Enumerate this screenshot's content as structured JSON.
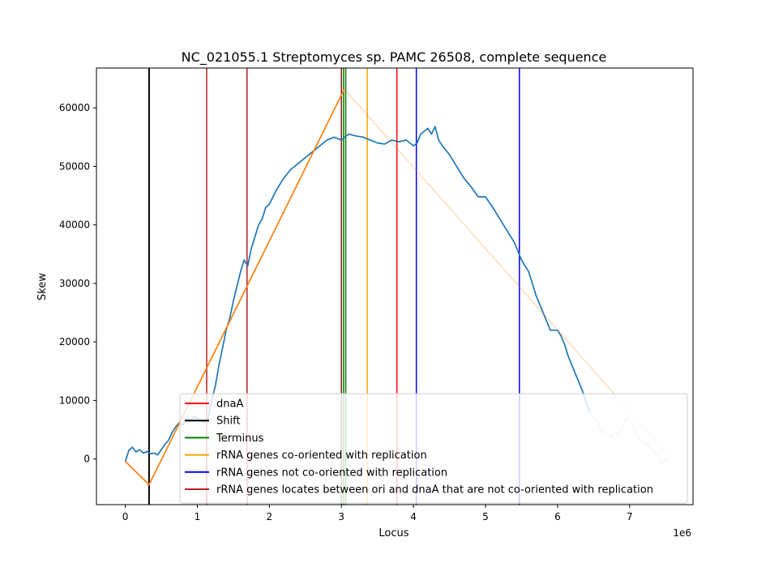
{
  "chart_data": {
    "type": "line",
    "title": "NC_021055.1 Streptomyces sp. PAMC 26508, complete sequence",
    "xlabel": "Locus",
    "ylabel": "Skew",
    "x_offset_label": "1e6",
    "xlim": [
      -400000,
      7880000
    ],
    "ylim": [
      -7800,
      66800
    ],
    "x_ticks": [
      0,
      1000000,
      2000000,
      3000000,
      4000000,
      5000000,
      6000000,
      7000000
    ],
    "x_tick_labels": [
      "0",
      "1",
      "2",
      "3",
      "4",
      "5",
      "6",
      "7"
    ],
    "y_ticks": [
      0,
      10000,
      20000,
      30000,
      40000,
      50000,
      60000
    ],
    "y_tick_labels": [
      "0",
      "10000",
      "20000",
      "30000",
      "40000",
      "50000",
      "60000"
    ],
    "grid": false,
    "legend_position": "lower-right",
    "series": [
      {
        "color": "#1f77b4",
        "x": [
          0,
          50000,
          100000,
          150000,
          200000,
          250000,
          300000,
          350000,
          400000,
          450000,
          500000,
          550000,
          600000,
          650000,
          700000,
          750000,
          800000,
          850000,
          900000,
          950000,
          1000000,
          1050000,
          1100000,
          1150000,
          1200000,
          1250000,
          1300000,
          1350000,
          1400000,
          1450000,
          1500000,
          1550000,
          1600000,
          1650000,
          1700000,
          1750000,
          1800000,
          1850000,
          1900000,
          1950000,
          2000000,
          2100000,
          2200000,
          2300000,
          2400000,
          2500000,
          2600000,
          2700000,
          2800000,
          2900000,
          3000000,
          3100000,
          3200000,
          3300000,
          3400000,
          3500000,
          3600000,
          3700000,
          3800000,
          3900000,
          4000000,
          4050000,
          4100000,
          4150000,
          4200000,
          4250000,
          4300000,
          4350000,
          4400000,
          4500000,
          4600000,
          4700000,
          4800000,
          4900000,
          5000000,
          5100000,
          5200000,
          5300000,
          5400000,
          5500000,
          5600000,
          5700000,
          5800000,
          5900000,
          6000000,
          6050000,
          6100000,
          6150000,
          6200000,
          6250000,
          6300000,
          6350000,
          6400000,
          6450000,
          6500000,
          6550000,
          6600000,
          6650000,
          6700000,
          6750000,
          6800000,
          6850000,
          6900000,
          6950000,
          7000000,
          7050000,
          7100000,
          7150000,
          7200000,
          7250000,
          7300000,
          7350000,
          7400000,
          7450000,
          7500000,
          7530000
        ],
        "y": [
          -500,
          1500,
          2000,
          1200,
          1600,
          1000,
          1300,
          900,
          1000,
          700,
          1600,
          2500,
          3200,
          4500,
          5500,
          6200,
          5800,
          7000,
          6500,
          7200,
          7000,
          6500,
          6200,
          7000,
          10000,
          12500,
          16000,
          19000,
          22000,
          24000,
          27000,
          29500,
          32000,
          34000,
          33000,
          36000,
          38000,
          40000,
          41000,
          43000,
          43500,
          46000,
          48000,
          49500,
          50500,
          51500,
          52500,
          53500,
          54500,
          55000,
          54500,
          55500,
          55200,
          55000,
          54500,
          54000,
          53800,
          54500,
          54200,
          54500,
          53500,
          54000,
          55500,
          56000,
          56500,
          55500,
          56800,
          54500,
          53500,
          52000,
          50000,
          48000,
          46500,
          44800,
          44800,
          43000,
          41000,
          39000,
          37000,
          34000,
          32000,
          28000,
          25000,
          22000,
          22000,
          21000,
          19500,
          17500,
          16000,
          14500,
          13000,
          11500,
          9500,
          8000,
          7000,
          6500,
          5000,
          4500,
          4200,
          3800,
          4500,
          4200,
          5500,
          7000,
          6500,
          5500,
          4000,
          3200,
          2500,
          2800,
          1500,
          1000,
          500,
          -800,
          200,
          -300
        ],
        "faded_from_index": 93
      },
      {
        "color": "#ff7f0e",
        "x": [
          0,
          330000,
          3040000,
          7530000
        ],
        "y": [
          -400,
          -4400,
          63200,
          800
        ],
        "faded_from_index": 2
      }
    ],
    "vertical_lines": [
      {
        "x": 330000,
        "color": "#000000",
        "width": 2
      },
      {
        "x": 1130000,
        "color": "#b22222",
        "width": 1.5
      },
      {
        "x": 1690000,
        "color": "#b22222",
        "width": 1.5
      },
      {
        "x": 3000000,
        "color": "#8b1a1a",
        "width": 1.5
      },
      {
        "x": 3030000,
        "color": "#008000",
        "width": 1.5
      },
      {
        "x": 3060000,
        "color": "#008000",
        "width": 1.5
      },
      {
        "x": 3360000,
        "color": "#ffa500",
        "width": 1.5
      },
      {
        "x": 3770000,
        "color": "#ff0000",
        "width": 1.5
      },
      {
        "x": 4040000,
        "color": "#0000ff",
        "width": 1.5
      },
      {
        "x": 5470000,
        "color": "#0000ff",
        "width": 1.5
      }
    ],
    "legend": [
      {
        "label": "dnaA",
        "color": "#ff0000"
      },
      {
        "label": "Shift",
        "color": "#000000"
      },
      {
        "label": "Terminus",
        "color": "#008000"
      },
      {
        "label": "rRNA genes co-oriented with replication",
        "color": "#ffa500"
      },
      {
        "label": "rRNA genes not co-oriented with replication",
        "color": "#0000ff"
      },
      {
        "label": "rRNA genes locates between ori and dnaA that are not co-oriented with replication",
        "color": "#b22222"
      }
    ]
  }
}
